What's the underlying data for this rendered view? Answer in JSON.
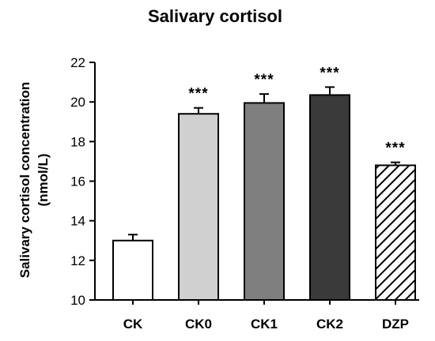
{
  "chart_data": {
    "type": "bar",
    "title": "Salivary cortisol",
    "ylabel": "Salivary cortisol concentration (nmol/L)",
    "ylabel_lines": [
      "Salivary cortisol concentration",
      "(nmol/L)"
    ],
    "xlabel": "",
    "ylim": [
      10,
      22
    ],
    "yticks": [
      10,
      12,
      14,
      16,
      18,
      20,
      22
    ],
    "categories": [
      "CK",
      "CK0",
      "CK1",
      "CK2",
      "DZP"
    ],
    "values": [
      13.0,
      19.4,
      19.95,
      20.35,
      16.8
    ],
    "errors": [
      0.3,
      0.3,
      0.45,
      0.4,
      0.15
    ],
    "annotations": [
      "",
      "***",
      "***",
      "***",
      "***"
    ],
    "bar_fills": [
      "#ffffff",
      "#d0d0d0",
      "#7f7f7f",
      "#3a3a3a",
      "hatched"
    ],
    "grid": false,
    "legend": "none"
  }
}
